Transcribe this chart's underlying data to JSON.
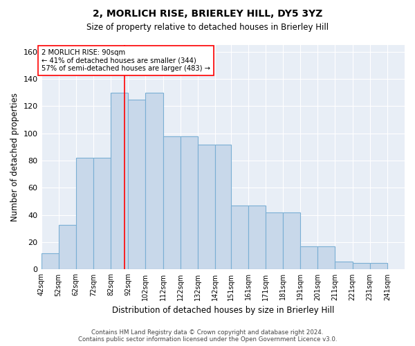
{
  "title1": "2, MORLICH RISE, BRIERLEY HILL, DY5 3YZ",
  "title2": "Size of property relative to detached houses in Brierley Hill",
  "xlabel": "Distribution of detached houses by size in Brierley Hill",
  "ylabel": "Number of detached properties",
  "bar_color": "#c8d8ea",
  "bar_edge_color": "#7aafd4",
  "bg_color": "#e8eef6",
  "tick_labels": [
    "42sqm",
    "52sqm",
    "62sqm",
    "72sqm",
    "82sqm",
    "92sqm",
    "102sqm",
    "112sqm",
    "122sqm",
    "132sqm",
    "142sqm",
    "151sqm",
    "161sqm",
    "171sqm",
    "181sqm",
    "191sqm",
    "201sqm",
    "211sqm",
    "221sqm",
    "231sqm",
    "241sqm"
  ],
  "bar_heights": [
    12,
    33,
    82,
    82,
    130,
    125,
    130,
    98,
    98,
    92,
    92,
    47,
    47,
    42,
    42,
    17,
    17,
    6,
    5,
    5
  ],
  "left_edges": [
    42,
    52,
    62,
    72,
    82,
    92,
    102,
    112,
    122,
    132,
    142,
    151,
    161,
    171,
    181,
    191,
    201,
    211,
    221,
    231
  ],
  "bar_widths": [
    10,
    10,
    10,
    10,
    10,
    10,
    10,
    10,
    10,
    10,
    9,
    10,
    10,
    10,
    10,
    10,
    10,
    10,
    10,
    10
  ],
  "tick_positions": [
    42,
    52,
    62,
    72,
    82,
    92,
    102,
    112,
    122,
    132,
    142,
    151,
    161,
    171,
    181,
    191,
    201,
    211,
    221,
    231,
    241
  ],
  "red_line_x": 90,
  "annotation_title": "2 MORLICH RISE: 90sqm",
  "annotation_line1": "← 41% of detached houses are smaller (344)",
  "annotation_line2": "57% of semi-detached houses are larger (483) →",
  "footnote1": "Contains HM Land Registry data © Crown copyright and database right 2024.",
  "footnote2": "Contains public sector information licensed under the Open Government Licence v3.0.",
  "ylim": [
    0,
    165
  ],
  "yticks": [
    0,
    20,
    40,
    60,
    80,
    100,
    120,
    140,
    160
  ]
}
